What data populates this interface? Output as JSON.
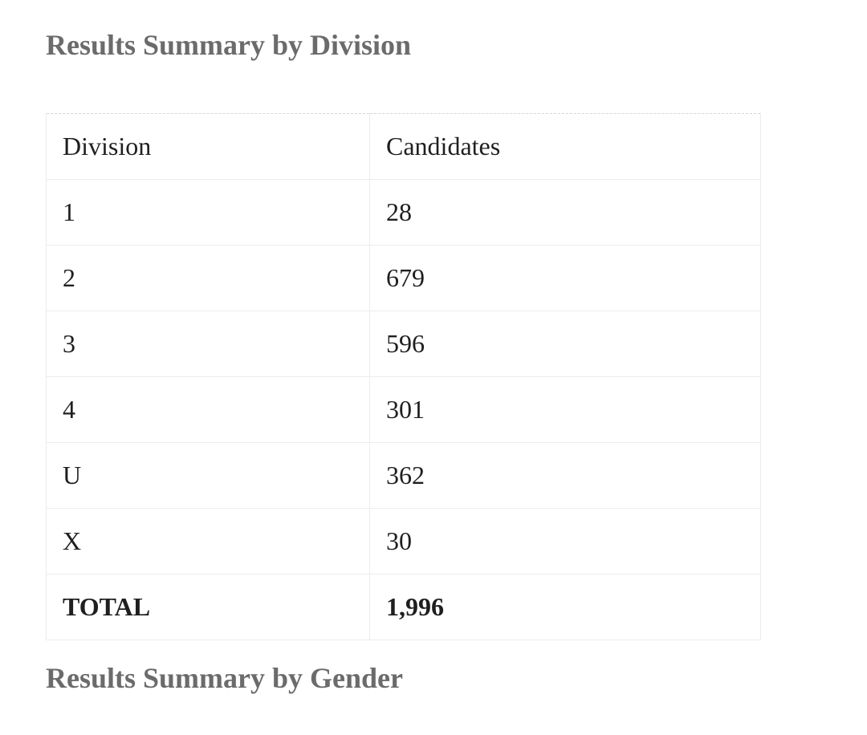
{
  "sections": {
    "division": {
      "title": "Results Summary by Division"
    },
    "gender": {
      "title": "Results Summary by Gender"
    }
  },
  "division_table": {
    "columns": [
      "Division",
      "Candidates"
    ],
    "rows": [
      {
        "division": "1",
        "candidates": "28"
      },
      {
        "division": "2",
        "candidates": "679"
      },
      {
        "division": "3",
        "candidates": "596"
      },
      {
        "division": "4",
        "candidates": "301"
      },
      {
        "division": "U",
        "candidates": "362"
      },
      {
        "division": "X",
        "candidates": "30"
      }
    ],
    "total": {
      "label": "TOTAL",
      "candidates": "1,996"
    }
  },
  "colors": {
    "heading_color": "#6b6b6b",
    "text_color": "#1f1f1f",
    "border_solid": "#ececec",
    "border_dashed": "#d6d6d6",
    "page_bg": "#ffffff"
  }
}
